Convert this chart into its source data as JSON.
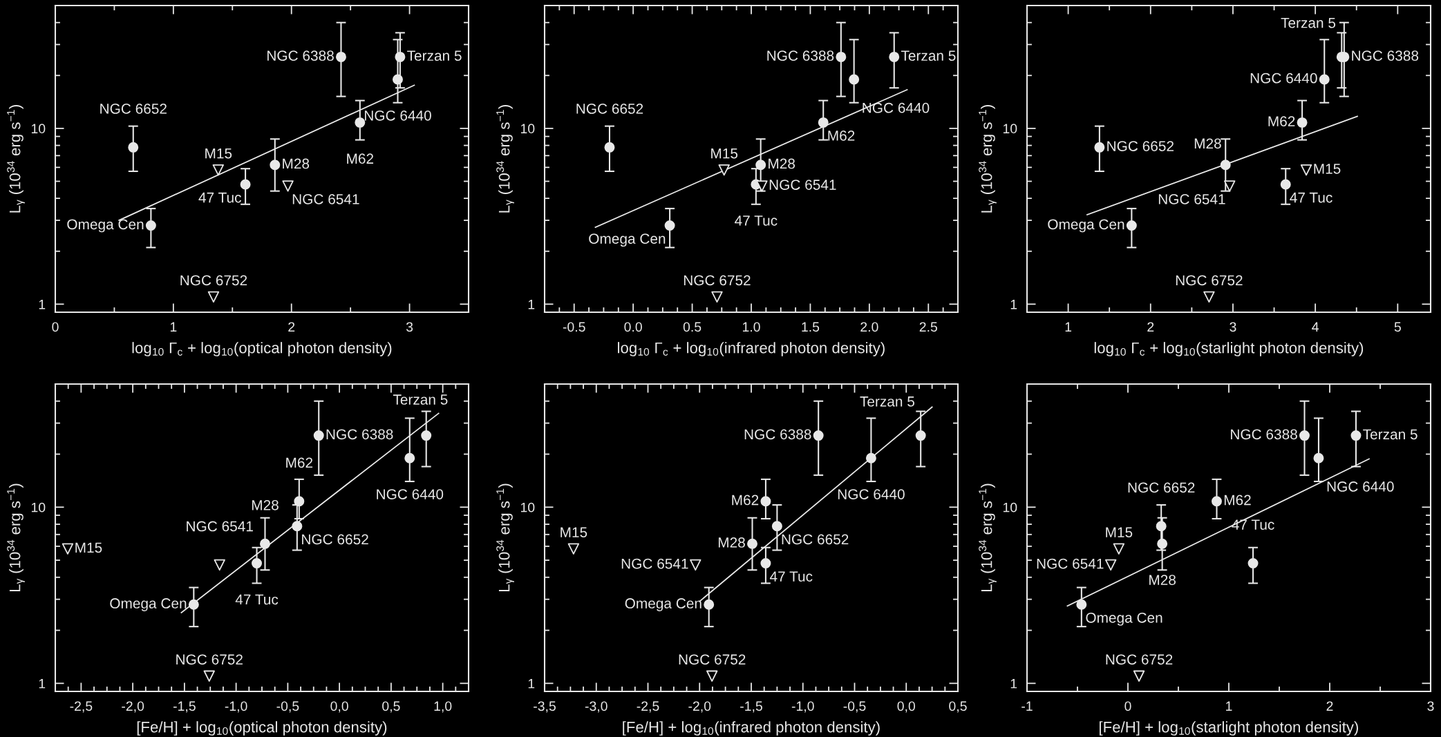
{
  "chart_data": [
    {
      "type": "scatter",
      "xlabel": "log$_{10}$ Γ$_{c}$ + log$_{10}$(optical photon density)",
      "ylabel": "L$_{γ}$ (10$^{34}$ erg s$^{−1}$)",
      "xlim": [
        0,
        3.5
      ],
      "xticks": [
        0,
        1,
        2,
        3
      ],
      "ylim": [
        0.9,
        50
      ],
      "yticks": [
        1,
        10
      ],
      "log": "y",
      "grid": false,
      "series": [
        {
          "type": "scatter",
          "marker": "circle",
          "color": "#e8e8e8",
          "x": [
            2.42,
            2.92,
            2.9,
            2.58,
            0.66,
            1.86,
            1.61,
            0.81
          ],
          "values": [
            25.5,
            25.5,
            19,
            10.8,
            7.8,
            6.2,
            4.8,
            2.8
          ],
          "errors": [
            [
              15.2,
              40
            ],
            [
              17,
              35
            ],
            [
              14,
              32
            ],
            [
              8.6,
              14.4
            ],
            [
              5.7,
              10.3
            ],
            [
              4.4,
              8.7
            ],
            [
              3.7,
              5.9
            ],
            [
              2.1,
              3.5
            ]
          ]
        },
        {
          "type": "scatter",
          "marker": "triangle",
          "color": "#e8e8e8",
          "x": [
            1.38,
            1.97,
            1.34
          ],
          "values": [
            5.8,
            4.7,
            1.1
          ]
        },
        {
          "type": "line",
          "marker": "none",
          "color": "#e8e8e8",
          "x": [
            0.54,
            3.04
          ],
          "values": [
            3.0,
            17.6
          ]
        }
      ],
      "annotations": [
        {
          "text": "NGC 6388",
          "x": 2.42,
          "y": 25.5
        },
        {
          "text": "Terzan 5",
          "x": 2.92,
          "y": 25.5
        },
        {
          "text": "NGC 6440",
          "x": 2.9,
          "y": 19
        },
        {
          "text": "M62",
          "x": 2.58,
          "y": 10.8
        },
        {
          "text": "NGC 6652",
          "x": 0.66,
          "y": 7.8
        },
        {
          "text": "M28",
          "x": 1.86,
          "y": 6.2
        },
        {
          "text": "47 Tuc",
          "x": 1.61,
          "y": 4.8
        },
        {
          "text": "Omega Cen",
          "x": 0.81,
          "y": 2.8
        },
        {
          "text": "M15",
          "x": 1.38,
          "y": 5.8
        },
        {
          "text": "NGC 6541",
          "x": 1.97,
          "y": 4.7
        },
        {
          "text": "NGC 6752",
          "x": 1.34,
          "y": 1.1
        }
      ]
    },
    {
      "type": "scatter",
      "xlabel": "log$_{10}$ Γ$_{c}$ + log$_{10}$(infrared photon density)",
      "ylabel": "L$_{γ}$ (10$^{34}$ erg s$^{−1}$)",
      "xlim": [
        -0.75,
        2.75
      ],
      "xticks": [
        {
          "value": -0.5,
          "label": "-0.5"
        },
        {
          "value": 0,
          "label": "0.0"
        },
        {
          "value": 0.5,
          "label": "0.5"
        },
        {
          "value": 1,
          "label": "1.0"
        },
        {
          "value": 1.5,
          "label": "1.5"
        },
        {
          "value": 2,
          "label": "2.0"
        },
        {
          "value": 2.5,
          "label": "2.5"
        }
      ],
      "ylim": [
        0.9,
        50
      ],
      "yticks": [
        1,
        10
      ],
      "log": "y",
      "grid": false,
      "series": [
        {
          "type": "scatter",
          "marker": "circle",
          "color": "#e8e8e8",
          "x": [
            1.76,
            2.21,
            1.87,
            1.61,
            -0.2,
            1.08,
            1.04,
            0.31
          ],
          "values": [
            25.5,
            25.5,
            19,
            10.8,
            7.8,
            6.2,
            4.8,
            2.8
          ],
          "errors": [
            [
              15.2,
              40
            ],
            [
              17,
              35
            ],
            [
              14,
              32
            ],
            [
              8.6,
              14.4
            ],
            [
              5.7,
              10.3
            ],
            [
              4.4,
              8.7
            ],
            [
              3.7,
              5.9
            ],
            [
              2.1,
              3.5
            ]
          ]
        },
        {
          "type": "scatter",
          "marker": "triangle",
          "color": "#e8e8e8",
          "x": [
            0.77,
            1.09,
            0.71
          ],
          "values": [
            5.8,
            4.7,
            1.1
          ]
        },
        {
          "type": "line",
          "marker": "none",
          "color": "#e8e8e8",
          "x": [
            -0.32,
            2.32
          ],
          "values": [
            2.74,
            16.6
          ]
        }
      ],
      "annotations": [
        {
          "text": "NGC 6388",
          "x": 1.76,
          "y": 25.5
        },
        {
          "text": "Terzan 5",
          "x": 2.21,
          "y": 25.5
        },
        {
          "text": "NGC 6440",
          "x": 1.87,
          "y": 19
        },
        {
          "text": "M62",
          "x": 1.61,
          "y": 10.8
        },
        {
          "text": "NGC 6652",
          "x": -0.2,
          "y": 7.8
        },
        {
          "text": "M28",
          "x": 1.08,
          "y": 6.2
        },
        {
          "text": "47 Tuc",
          "x": 1.04,
          "y": 4.8
        },
        {
          "text": "Omega Cen",
          "x": 0.31,
          "y": 2.8
        },
        {
          "text": "M15",
          "x": 0.77,
          "y": 5.8
        },
        {
          "text": "NGC 6541",
          "x": 1.09,
          "y": 4.7
        },
        {
          "text": "NGC 6752",
          "x": 0.71,
          "y": 1.1
        }
      ]
    },
    {
      "type": "scatter",
      "xlabel": "log$_{10}$ Γ$_{c}$ + log$_{10}$(starlight photon density)",
      "ylabel": "L$_{γ}$ (10$^{34}$ erg s$^{−1}$)",
      "xlim": [
        0.5,
        5.4
      ],
      "xticks": [
        1,
        2,
        3,
        4,
        5
      ],
      "ylim": [
        0.9,
        50
      ],
      "yticks": [
        1,
        10
      ],
      "log": "y",
      "grid": false,
      "series": [
        {
          "type": "scatter",
          "marker": "circle",
          "color": "#e8e8e8",
          "x": [
            4.35,
            4.32,
            4.11,
            3.84,
            1.38,
            2.91,
            3.64,
            1.77
          ],
          "values": [
            25.5,
            25.5,
            19,
            10.8,
            7.8,
            6.2,
            4.8,
            2.8
          ],
          "errors": [
            [
              15.2,
              40
            ],
            [
              17,
              35
            ],
            [
              14,
              32
            ],
            [
              8.6,
              14.4
            ],
            [
              5.7,
              10.3
            ],
            [
              4.4,
              8.7
            ],
            [
              3.7,
              5.9
            ],
            [
              2.1,
              3.5
            ]
          ]
        },
        {
          "type": "scatter",
          "marker": "triangle",
          "color": "#e8e8e8",
          "x": [
            3.89,
            2.96,
            2.71
          ],
          "values": [
            5.8,
            4.7,
            1.1
          ]
        },
        {
          "type": "line",
          "marker": "none",
          "color": "#e8e8e8",
          "x": [
            1.23,
            4.51
          ],
          "values": [
            3.23,
            11.7
          ]
        }
      ],
      "annotations": [
        {
          "text": "NGC 6388",
          "x": 4.35,
          "y": 25.5
        },
        {
          "text": "Terzan 5",
          "x": 4.32,
          "y": 35
        },
        {
          "text": "NGC 6440",
          "x": 4.11,
          "y": 19
        },
        {
          "text": "M62",
          "x": 3.84,
          "y": 10.8
        },
        {
          "text": "NGC 6652",
          "x": 1.38,
          "y": 7.8
        },
        {
          "text": "M28",
          "x": 2.91,
          "y": 6.2
        },
        {
          "text": "47 Tuc",
          "x": 3.64,
          "y": 4.8
        },
        {
          "text": "Omega Cen",
          "x": 1.77,
          "y": 2.8
        },
        {
          "text": "M15",
          "x": 3.89,
          "y": 5.8
        },
        {
          "text": "NGC 6541",
          "x": 2.96,
          "y": 4.7
        },
        {
          "text": "NGC 6752",
          "x": 2.71,
          "y": 1.1
        }
      ]
    },
    {
      "type": "scatter",
      "xlabel": "[Fe/H] + log$_{10}$(optical photon density)",
      "ylabel": "L$_{γ}$ (10$^{34}$ erg s$^{−1}$)",
      "xlim": [
        -2.75,
        1.25
      ],
      "xticks": [
        {
          "value": -2.5,
          "label": "-2,5"
        },
        {
          "value": -2,
          "label": "-2,0"
        },
        {
          "value": -1.5,
          "label": "-1,5"
        },
        {
          "value": -1,
          "label": "-1,0"
        },
        {
          "value": -0.5,
          "label": "-0,5"
        },
        {
          "value": 0,
          "label": "0,0"
        },
        {
          "value": 0.5,
          "label": "0,5"
        },
        {
          "value": 1,
          "label": "1,0"
        }
      ],
      "ylim": [
        0.9,
        50
      ],
      "yticks": [
        1,
        10
      ],
      "log": "y",
      "grid": false,
      "series": [
        {
          "type": "scatter",
          "marker": "circle",
          "color": "#e8e8e8",
          "x": [
            -0.2,
            0.84,
            0.68,
            -0.39,
            -0.41,
            -0.72,
            -0.8,
            -1.41
          ],
          "values": [
            25.5,
            25.5,
            19,
            10.8,
            7.8,
            6.2,
            4.8,
            2.8
          ],
          "errors": [
            [
              15.2,
              40
            ],
            [
              17,
              35
            ],
            [
              14,
              32
            ],
            [
              8.6,
              14.4
            ],
            [
              5.7,
              10.3
            ],
            [
              4.4,
              8.7
            ],
            [
              3.7,
              5.9
            ],
            [
              2.1,
              3.5
            ]
          ]
        },
        {
          "type": "scatter",
          "marker": "triangle",
          "color": "#e8e8e8",
          "x": [
            -2.63,
            -1.16,
            -1.26
          ],
          "values": [
            5.8,
            4.7,
            1.1
          ]
        },
        {
          "type": "line",
          "marker": "none",
          "color": "#e8e8e8",
          "x": [
            -1.53,
            0.96
          ],
          "values": [
            2.52,
            34.1
          ]
        }
      ],
      "annotations": [
        {
          "text": "NGC 6388",
          "x": -0.2,
          "y": 25.5
        },
        {
          "text": "Terzan 5",
          "x": 0.84,
          "y": 35
        },
        {
          "text": "NGC 6440",
          "x": 0.68,
          "y": 19
        },
        {
          "text": "M62",
          "x": -0.39,
          "y": 10.8
        },
        {
          "text": "NGC 6652",
          "x": -0.41,
          "y": 7.8
        },
        {
          "text": "M28",
          "x": -0.72,
          "y": 6.2
        },
        {
          "text": "47 Tuc",
          "x": -0.8,
          "y": 4.8
        },
        {
          "text": "Omega Cen",
          "x": -1.41,
          "y": 2.8
        },
        {
          "text": "M15",
          "x": -2.63,
          "y": 5.8
        },
        {
          "text": "NGC 6541",
          "x": -1.16,
          "y": 4.7
        },
        {
          "text": "NGC 6752",
          "x": -1.26,
          "y": 1.1
        }
      ]
    },
    {
      "type": "scatter",
      "xlabel": "[Fe/H] + log$_{10}$(infrared photon density)",
      "ylabel": "L$_{γ}$ (10$^{34}$ erg s$^{−1}$)",
      "xlim": [
        -3.5,
        0.5
      ],
      "xticks": [
        {
          "value": -3.5,
          "label": "-3,5"
        },
        {
          "value": -3,
          "label": "-3,0"
        },
        {
          "value": -2.5,
          "label": "-2,5"
        },
        {
          "value": -2,
          "label": "-2,0"
        },
        {
          "value": -1.5,
          "label": "-1,5"
        },
        {
          "value": -1,
          "label": "-1,0"
        },
        {
          "value": -0.5,
          "label": "-0,5"
        },
        {
          "value": 0,
          "label": "0,0"
        },
        {
          "value": 0.5,
          "label": "0,5"
        }
      ],
      "ylim": [
        0.9,
        50
      ],
      "yticks": [
        1,
        10
      ],
      "log": "y",
      "grid": false,
      "series": [
        {
          "type": "scatter",
          "marker": "circle",
          "color": "#e8e8e8",
          "x": [
            -0.85,
            0.14,
            -0.34,
            -1.36,
            -1.25,
            -1.49,
            -1.36,
            -1.91
          ],
          "values": [
            25.5,
            25.5,
            19,
            10.8,
            7.8,
            6.2,
            4.8,
            2.8
          ],
          "errors": [
            [
              15.2,
              40
            ],
            [
              17,
              35
            ],
            [
              14,
              32
            ],
            [
              8.6,
              14.4
            ],
            [
              5.7,
              10.3
            ],
            [
              4.4,
              8.7
            ],
            [
              3.7,
              5.9
            ],
            [
              2.1,
              3.5
            ]
          ]
        },
        {
          "type": "scatter",
          "marker": "triangle",
          "color": "#e8e8e8",
          "x": [
            -3.22,
            -2.04,
            -1.88
          ],
          "values": [
            5.8,
            4.7,
            1.1
          ]
        },
        {
          "type": "line",
          "marker": "none",
          "color": "#e8e8e8",
          "x": [
            -2.0,
            0.25
          ],
          "values": [
            2.92,
            37
          ]
        }
      ],
      "annotations": [
        {
          "text": "NGC 6388",
          "x": -0.85,
          "y": 25.5
        },
        {
          "text": "Terzan 5",
          "x": 0.14,
          "y": 35
        },
        {
          "text": "NGC 6440",
          "x": -0.34,
          "y": 19
        },
        {
          "text": "M62",
          "x": -1.36,
          "y": 10.8
        },
        {
          "text": "NGC 6652",
          "x": -1.25,
          "y": 7.8
        },
        {
          "text": "M28",
          "x": -1.49,
          "y": 6.2
        },
        {
          "text": "47 Tuc",
          "x": -1.36,
          "y": 4.8
        },
        {
          "text": "Omega Cen",
          "x": -1.91,
          "y": 2.8
        },
        {
          "text": "M15",
          "x": -3.22,
          "y": 5.8
        },
        {
          "text": "NGC 6541",
          "x": -2.04,
          "y": 4.7
        },
        {
          "text": "NGC 6752",
          "x": -1.88,
          "y": 1.1
        }
      ]
    },
    {
      "type": "scatter",
      "xlabel": "[Fe/H] + log$_{10}$(starlight photon density)",
      "ylabel": "L$_{γ}$ (10$^{34}$ erg s$^{−1}$)",
      "xlim": [
        -1,
        3
      ],
      "xticks": [
        -1,
        0,
        1,
        2,
        3
      ],
      "ylim": [
        0.9,
        50
      ],
      "yticks": [
        1,
        10
      ],
      "log": "y",
      "grid": false,
      "series": [
        {
          "type": "scatter",
          "marker": "circle",
          "color": "#e8e8e8",
          "x": [
            1.75,
            2.26,
            1.89,
            0.88,
            0.33,
            0.34,
            1.24,
            -0.46
          ],
          "values": [
            25.5,
            25.5,
            19,
            10.8,
            7.8,
            6.2,
            4.8,
            2.8
          ],
          "errors": [
            [
              15.2,
              40
            ],
            [
              17,
              35
            ],
            [
              14,
              32
            ],
            [
              8.6,
              14.4
            ],
            [
              5.7,
              10.3
            ],
            [
              4.4,
              8.7
            ],
            [
              3.7,
              5.9
            ],
            [
              2.1,
              3.5
            ]
          ]
        },
        {
          "type": "scatter",
          "marker": "triangle",
          "color": "#e8e8e8",
          "x": [
            -0.09,
            -0.17,
            0.11
          ],
          "values": [
            5.8,
            4.7,
            1.1
          ]
        },
        {
          "type": "line",
          "marker": "none",
          "color": "#e8e8e8",
          "x": [
            -0.6,
            2.39
          ],
          "values": [
            2.75,
            18.8
          ]
        }
      ],
      "annotations": [
        {
          "text": "NGC 6388",
          "x": 1.75,
          "y": 25.5
        },
        {
          "text": "Terzan 5",
          "x": 2.26,
          "y": 25.5
        },
        {
          "text": "NGC 6440",
          "x": 1.89,
          "y": 19
        },
        {
          "text": "M62",
          "x": 0.88,
          "y": 10.8
        },
        {
          "text": "NGC 6652",
          "x": 0.33,
          "y": 7.8
        },
        {
          "text": "M28",
          "x": 0.34,
          "y": 6.2
        },
        {
          "text": "47 Tuc",
          "x": 1.24,
          "y": 4.8
        },
        {
          "text": "Omega Cen",
          "x": -0.46,
          "y": 2.8
        },
        {
          "text": "M15",
          "x": -0.09,
          "y": 5.8
        },
        {
          "text": "NGC 6541",
          "x": -0.17,
          "y": 4.7
        },
        {
          "text": "NGC 6752",
          "x": 0.11,
          "y": 1.1
        }
      ]
    }
  ]
}
